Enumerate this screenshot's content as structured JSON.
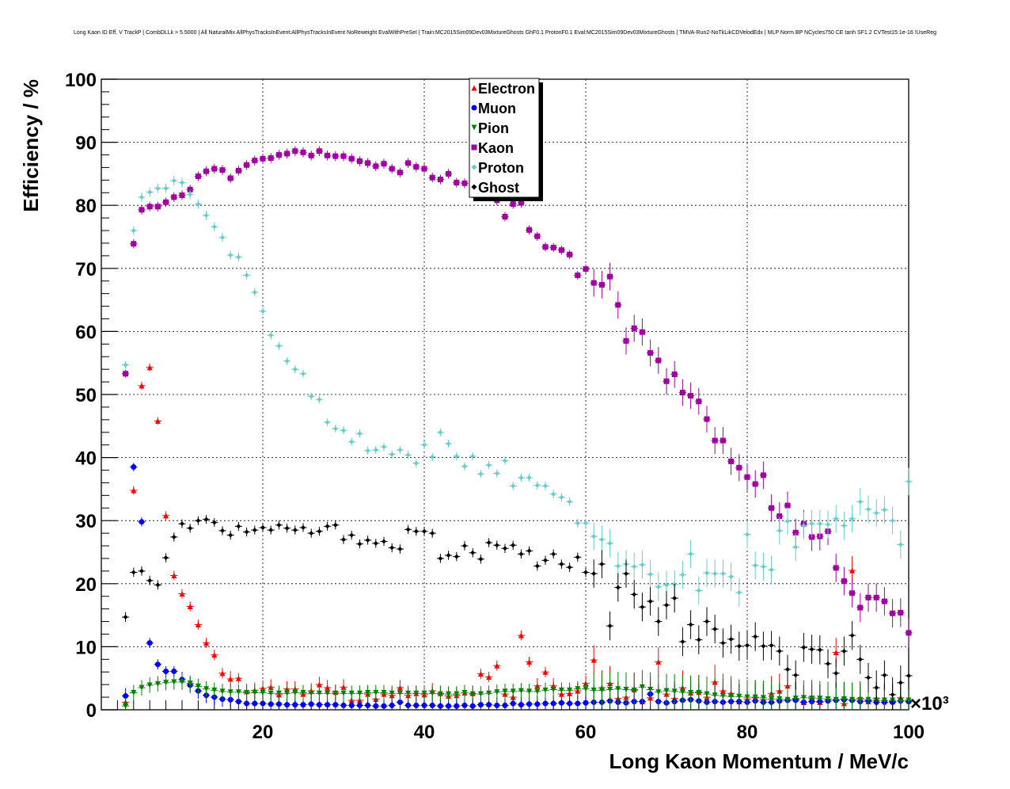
{
  "chart_data": {
    "type": "scatter",
    "title": "Long Kaon ID Eff. V TrackP | CombDLLk > 5.5000 | All NaturalMix AllPhysTracksInEvent:AllPhysTracksInEvent NoReweight EvalWithPreSel | Train:MC2015Sim09Dev03MixtureGhosts GhF0.1 ProtonF0.1 Eval:MC2015Sim09Dev03MixtureGhosts | TMVA-Run2-NoTkLikCDVelodEdx | MLP Norm BP NCycles750 CE tanh SF1.2 CVTest15:1e-16 !UseReg",
    "xlabel": "Long Kaon Momentum / MeV/c",
    "ylabel": "Efficiency / %",
    "x_multiplier": "×10³",
    "xlim": [
      0,
      100000
    ],
    "ylim": [
      0,
      100
    ],
    "x_ticks": [
      "20",
      "40",
      "60",
      "80",
      "100"
    ],
    "y_ticks": [
      "0",
      "10",
      "20",
      "30",
      "40",
      "50",
      "60",
      "70",
      "80",
      "90",
      "100"
    ],
    "grid": true,
    "legend_position": "top-center",
    "x": [
      3000,
      4000,
      5000,
      6000,
      7000,
      8000,
      9000,
      10000,
      11000,
      12000,
      13000,
      14000,
      15000,
      16000,
      17000,
      18000,
      19000,
      20000,
      21000,
      22000,
      23000,
      24000,
      25000,
      26000,
      27000,
      28000,
      29000,
      30000,
      31000,
      32000,
      33000,
      34000,
      35000,
      36000,
      37000,
      38000,
      39000,
      40000,
      41000,
      42000,
      43000,
      44000,
      45000,
      46000,
      47000,
      48000,
      49000,
      50000,
      51000,
      52000,
      53000,
      54000,
      55000,
      56000,
      57000,
      58000,
      59000,
      60000,
      61000,
      62000,
      63000,
      64000,
      65000,
      66000,
      67000,
      68000,
      69000,
      70000,
      71000,
      72000,
      73000,
      74000,
      75000,
      76000,
      77000,
      78000,
      79000,
      80000,
      81000,
      82000,
      83000,
      84000,
      85000,
      86000,
      87000,
      88000,
      89000,
      90000,
      91000,
      92000,
      93000,
      94000,
      95000,
      96000,
      97000,
      98000,
      99000,
      100000
    ],
    "series": [
      {
        "name": "Electron",
        "color": "#ff0000",
        "marker": "triangle-up",
        "values": [
          1.2,
          34.8,
          51.4,
          54.3,
          45.8,
          30.8,
          21.3,
          18.4,
          16.4,
          13.5,
          10.6,
          8.7,
          5.8,
          4.9,
          5.0,
          2.9,
          3.1,
          3.4,
          3.6,
          2.4,
          3.3,
          3.3,
          2.5,
          3.0,
          4.0,
          3.5,
          2.8,
          3.6,
          1.5,
          1.5,
          2.5,
          1.7,
          2.5,
          2.3,
          3.5,
          2.3,
          2.6,
          2.4,
          3.0,
          2.6,
          2.2,
          2.3,
          2.7,
          2.6,
          5.7,
          5.2,
          7.0,
          2.5,
          2.0,
          11.8,
          7.6,
          3.8,
          6.0,
          3.8,
          2.5,
          2.6,
          3.0,
          4.2,
          7.9,
          3.5,
          4.2,
          1.8,
          2.0,
          3.2,
          1.3,
          1.9,
          7.6,
          2.5,
          1.8,
          3.5,
          2.7,
          2.8,
          2.0,
          4.4,
          3.0,
          2.6,
          1.3,
          1.7,
          1.9,
          1.6,
          2.6,
          3.0,
          3.8,
          1.7,
          1.2,
          2.0,
          1.2,
          1.7,
          9.1,
          1.0,
          22.1,
          1.8,
          1.3,
          1.8,
          1.5,
          1.3,
          1.9,
          1.5
        ]
      },
      {
        "name": "Muon",
        "color": "#0000ff",
        "marker": "circle",
        "values": [
          2.2,
          38.5,
          29.8,
          10.6,
          7.2,
          6.1,
          6.1,
          4.8,
          3.9,
          3.0,
          2.3,
          2.0,
          1.7,
          1.6,
          1.3,
          1.0,
          1.0,
          1.0,
          0.9,
          0.9,
          0.8,
          0.8,
          0.8,
          0.9,
          0.8,
          0.8,
          0.8,
          0.7,
          0.7,
          0.7,
          0.7,
          0.6,
          0.6,
          0.7,
          1.2,
          0.7,
          0.7,
          0.7,
          0.7,
          0.6,
          0.6,
          0.6,
          0.7,
          0.6,
          0.8,
          0.8,
          0.7,
          0.7,
          1.0,
          0.8,
          0.9,
          0.9,
          1.0,
          1.0,
          1.1,
          1.0,
          1.0,
          1.1,
          1.2,
          1.2,
          1.4,
          1.2,
          1.1,
          1.3,
          1.3,
          2.5,
          1.3,
          1.1,
          1.3,
          1.5,
          1.6,
          1.4,
          1.2,
          1.3,
          1.2,
          1.3,
          1.3,
          1.2,
          1.4,
          1.2,
          1.2,
          1.4,
          1.5,
          1.5,
          1.2,
          1.3,
          1.3,
          1.4,
          1.5,
          1.6,
          1.5,
          1.3,
          1.4,
          1.2,
          1.2,
          1.2,
          1.4,
          1.3
        ]
      },
      {
        "name": "Pion",
        "color": "#008000",
        "marker": "triangle-down",
        "values": [
          0.6,
          2.7,
          3.5,
          3.9,
          4.1,
          4.3,
          4.4,
          4.4,
          4.2,
          3.7,
          3.3,
          3.1,
          2.9,
          2.8,
          2.8,
          2.7,
          2.7,
          2.7,
          2.6,
          2.6,
          2.6,
          2.7,
          2.7,
          2.6,
          2.6,
          2.6,
          2.6,
          2.6,
          2.6,
          2.6,
          2.7,
          2.7,
          2.7,
          2.6,
          2.6,
          2.6,
          2.6,
          2.6,
          2.6,
          2.5,
          2.5,
          2.5,
          2.7,
          2.5,
          2.5,
          2.6,
          2.8,
          2.9,
          2.9,
          3.0,
          2.9,
          2.9,
          3.1,
          3.2,
          3.1,
          3.1,
          3.3,
          3.3,
          3.1,
          3.1,
          3.2,
          3.3,
          3.2,
          3.1,
          3.6,
          3.2,
          2.8,
          3.0,
          2.9,
          2.8,
          2.7,
          2.7,
          2.5,
          2.3,
          2.2,
          2.1,
          2.1,
          2.0,
          2.0,
          1.9,
          1.7,
          1.7,
          1.6,
          1.8,
          1.9,
          1.8,
          1.8,
          1.7,
          1.6,
          1.7,
          1.6,
          1.6,
          1.6,
          1.5,
          1.5,
          1.5,
          1.4,
          1.5
        ]
      },
      {
        "name": "Kaon",
        "color": "#a000a0",
        "marker": "square",
        "values": [
          53.3,
          73.9,
          79.3,
          79.8,
          79.8,
          80.5,
          81.3,
          81.6,
          82.5,
          84.6,
          85.4,
          85.8,
          85.6,
          84.3,
          85.5,
          86.4,
          87.1,
          87.4,
          87.5,
          88.0,
          88.2,
          88.6,
          88.4,
          87.9,
          88.6,
          87.9,
          87.8,
          87.8,
          87.4,
          87.0,
          86.7,
          86.2,
          86.6,
          85.8,
          85.2,
          86.7,
          86.1,
          85.8,
          84.4,
          84.1,
          85.0,
          83.6,
          83.5,
          81.9,
          81.9,
          81.8,
          80.8,
          78.2,
          80.2,
          80.4,
          76.1,
          75.1,
          73.4,
          73.3,
          72.9,
          72.2,
          68.9,
          69.9,
          67.7,
          67.4,
          68.7,
          64.2,
          58.5,
          60.5,
          59.9,
          56.6,
          55.4,
          52.1,
          53.2,
          50.3,
          49.8,
          48.9,
          46.1,
          42.7,
          42.7,
          39.4,
          38.4,
          36.9,
          35.8,
          37.2,
          32.0,
          30.7,
          32.4,
          28.1,
          29.5,
          27.4,
          27.5,
          28.3,
          22.5,
          20.4,
          18.5,
          16.2,
          17.8,
          17.8,
          17.2,
          15.3,
          15.4,
          12.2
        ]
      },
      {
        "name": "Proton",
        "color": "#66cccc",
        "marker": "cross",
        "values": [
          54.7,
          76.0,
          81.3,
          82.1,
          82.7,
          82.7,
          83.9,
          83.6,
          81.7,
          80.2,
          78.4,
          76.6,
          74.9,
          72.1,
          71.8,
          68.9,
          66.2,
          63.2,
          59.4,
          57.7,
          55.3,
          54.0,
          53.3,
          49.7,
          49.2,
          45.6,
          44.6,
          44.3,
          42.5,
          43.8,
          41.1,
          41.2,
          41.7,
          40.5,
          41.2,
          40.4,
          39.1,
          42.0,
          40.1,
          44.0,
          42.2,
          40.2,
          38.6,
          40.2,
          37.4,
          38.8,
          37.5,
          39.5,
          35.5,
          36.8,
          36.8,
          35.6,
          35.5,
          34.2,
          33.7,
          33.0,
          29.6,
          29.6,
          27.5,
          27.0,
          26.4,
          22.8,
          23.1,
          22.7,
          23.0,
          21.5,
          19.5,
          19.8,
          19.9,
          21.4,
          24.7,
          18.9,
          21.7,
          21.6,
          21.6,
          21.1,
          18.6,
          27.8,
          22.9,
          22.7,
          22.2,
          28.4,
          29.9,
          25.8,
          29.2,
          29.5,
          29.5,
          29.4,
          30.3,
          29.2,
          30.3,
          33.0,
          31.8,
          31.2,
          31.7,
          30.0,
          26.2,
          36.2
        ]
      },
      {
        "name": "Ghost",
        "color": "#000000",
        "marker": "cross",
        "values": [
          14.7,
          21.8,
          22.0,
          20.5,
          19.8,
          24.1,
          27.4,
          29.5,
          28.8,
          30.0,
          30.2,
          29.7,
          28.4,
          27.7,
          29.1,
          28.2,
          28.5,
          28.9,
          28.5,
          29.3,
          28.8,
          28.5,
          28.9,
          28.0,
          28.3,
          29.1,
          29.3,
          27.0,
          27.7,
          26.3,
          26.9,
          26.4,
          26.7,
          25.7,
          25.5,
          28.6,
          28.3,
          28.3,
          28.0,
          24.0,
          24.5,
          24.3,
          26.0,
          24.9,
          23.9,
          26.5,
          26.1,
          25.6,
          26.1,
          24.7,
          25.2,
          22.8,
          23.7,
          24.7,
          23.1,
          22.6,
          24.2,
          21.8,
          21.6,
          23.1,
          13.3,
          19.4,
          21.6,
          18.3,
          16.3,
          17.2,
          14.0,
          16.6,
          17.7,
          10.8,
          13.5,
          11.1,
          14.0,
          12.8,
          10.6,
          11.2,
          10.1,
          10.2,
          11.6,
          10.1,
          10.2,
          9.3,
          6.4,
          5.5,
          9.9,
          9.6,
          9.5,
          7.3,
          5.8,
          9.3,
          11.8,
          8.0,
          5.1,
          3.5,
          5.5,
          2.4,
          4.3,
          5.4
        ]
      }
    ]
  }
}
